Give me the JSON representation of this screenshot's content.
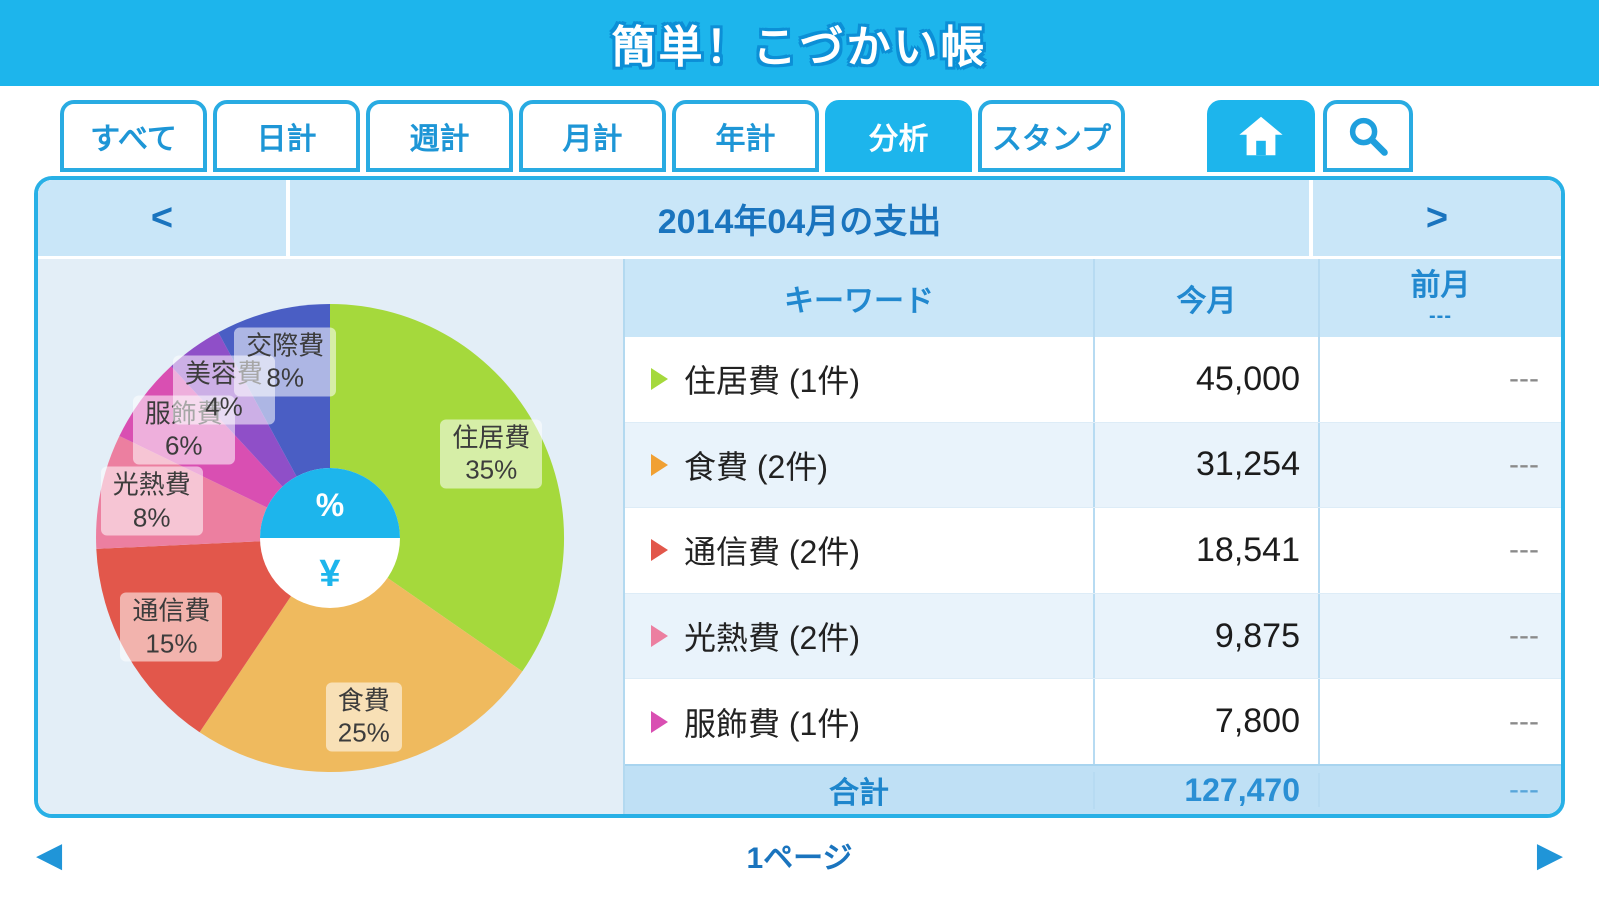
{
  "app": {
    "title": "簡単！こづかい帳"
  },
  "tabs": [
    {
      "name": "all",
      "label": "すべて",
      "active": false
    },
    {
      "name": "daily",
      "label": "日計",
      "active": false
    },
    {
      "name": "weekly",
      "label": "週計",
      "active": false
    },
    {
      "name": "monthly",
      "label": "月計",
      "active": false
    },
    {
      "name": "yearly",
      "label": "年計",
      "active": false
    },
    {
      "name": "analysis",
      "label": "分析",
      "active": true
    },
    {
      "name": "stamp",
      "label": "スタンプ",
      "active": false
    }
  ],
  "icon_tabs": {
    "home": {
      "active": true
    },
    "search": {
      "active": false
    }
  },
  "period_header": {
    "prev": "<",
    "title": "2014年04月の支出",
    "next": ">"
  },
  "chart_data": {
    "type": "pie",
    "title": "2014年04月の支出",
    "center_top": "%",
    "center_bottom": "¥",
    "categories": [
      "住居費",
      "食費",
      "通信費",
      "光熱費",
      "服飾費",
      "美容費",
      "交際費"
    ],
    "values": [
      35,
      25,
      15,
      8,
      6,
      4,
      8
    ],
    "slices": [
      {
        "name": "housing",
        "label": "住居費",
        "percent": 35,
        "color": "#a5d93c"
      },
      {
        "name": "food",
        "label": "食費",
        "percent": 25,
        "color": "#efba5e"
      },
      {
        "name": "communication",
        "label": "通信費",
        "percent": 15,
        "color": "#e2574b"
      },
      {
        "name": "utilities",
        "label": "光熱費",
        "percent": 8,
        "color": "#ec7fa0"
      },
      {
        "name": "clothing",
        "label": "服飾費",
        "percent": 6,
        "color": "#d94fb2"
      },
      {
        "name": "beauty",
        "label": "美容費",
        "percent": 4,
        "color": "#8f4fc8"
      },
      {
        "name": "social",
        "label": "交際費",
        "percent": 8,
        "color": "#4a5ec4"
      }
    ]
  },
  "table": {
    "headers": {
      "keyword": "キーワード",
      "this_month": "今月",
      "last_month": "前月",
      "last_month_sub": "---"
    },
    "rows": [
      {
        "name": "housing",
        "label": "住居費 (1件)",
        "this_month": "45,000",
        "last_month": "---",
        "marker_color": "#a5d93c"
      },
      {
        "name": "food",
        "label": "食費 (2件)",
        "this_month": "31,254",
        "last_month": "---",
        "marker_color": "#f0a033"
      },
      {
        "name": "communication",
        "label": "通信費 (2件)",
        "this_month": "18,541",
        "last_month": "---",
        "marker_color": "#e2574b"
      },
      {
        "name": "utilities",
        "label": "光熱費 (2件)",
        "this_month": "9,875",
        "last_month": "---",
        "marker_color": "#ec7fa0"
      },
      {
        "name": "clothing",
        "label": "服飾費 (1件)",
        "this_month": "7,800",
        "last_month": "---",
        "marker_color": "#d94fb2"
      }
    ],
    "footer": {
      "label": "合計",
      "this_month": "127,470",
      "last_month": "---"
    }
  },
  "pagination": {
    "prev": "◀",
    "label": "1ページ",
    "next": "▶"
  },
  "colors": {
    "accent": "#1db5ec",
    "panel_border": "#28b0e6",
    "header_text": "#1a74be"
  }
}
